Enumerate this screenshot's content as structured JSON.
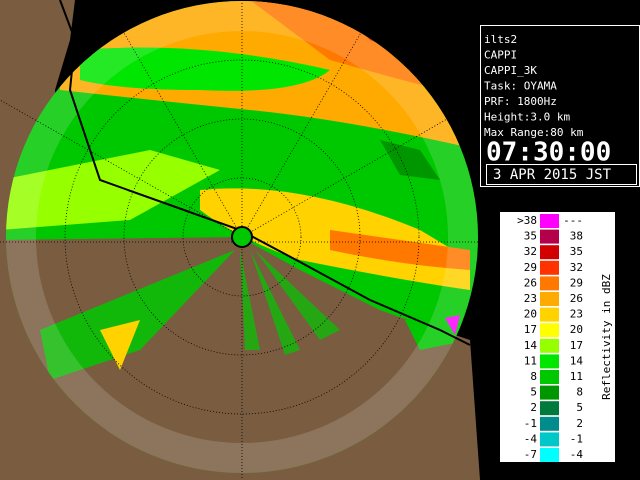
{
  "info": {
    "lines": [
      "ilts2",
      "CAPPI",
      "CAPPI_3K",
      "Task: OYAMA",
      "PRF: 1800Hz",
      "Height:3.0 km",
      "Max Range:80 km"
    ],
    "time": "07:30:00",
    "date": "3 APR 2015 JST"
  },
  "legend": {
    "title": "Reflectivity in dBZ",
    "rows": [
      {
        "low": ">38",
        "high": "---",
        "color": "#ff00ff"
      },
      {
        "low": "35",
        "high": "38",
        "color": "#b4004b"
      },
      {
        "low": "32",
        "high": "35",
        "color": "#d20000"
      },
      {
        "low": "29",
        "high": "32",
        "color": "#ff3200"
      },
      {
        "low": "26",
        "high": "29",
        "color": "#ff7800"
      },
      {
        "low": "23",
        "high": "26",
        "color": "#ffaa00"
      },
      {
        "low": "20",
        "high": "23",
        "color": "#ffd200"
      },
      {
        "low": "17",
        "high": "20",
        "color": "#ffff00"
      },
      {
        "low": "14",
        "high": "17",
        "color": "#96ff00"
      },
      {
        "low": "11",
        "high": "14",
        "color": "#00e600"
      },
      {
        "low": "8",
        "high": "11",
        "color": "#00c800"
      },
      {
        "low": "5",
        "high": "8",
        "color": "#009600"
      },
      {
        "low": "2",
        "high": "5",
        "color": "#007a3c"
      },
      {
        "low": "-1",
        "high": "2",
        "color": "#008c8c"
      },
      {
        "low": "-4",
        "high": "-1",
        "color": "#00c8c8"
      },
      {
        "low": "-7",
        "high": "-4",
        "color": "#00ffff"
      }
    ]
  }
}
